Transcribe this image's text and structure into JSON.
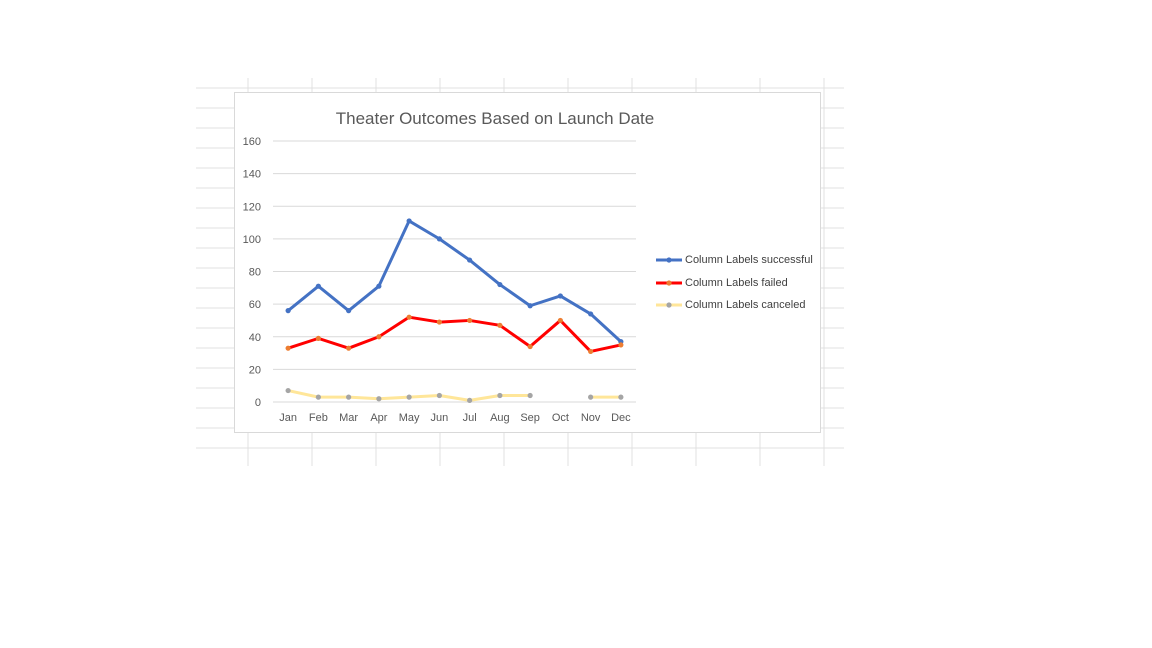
{
  "colors": {
    "successful": "#4472C4",
    "failed": "#FF0000",
    "canceled": "#FFE699",
    "successful_marker": "#4472C4",
    "failed_marker": "#ED7D31",
    "canceled_marker": "#A5A5A5",
    "gridline": "#D9D9D9",
    "sheet_gridline": "#E0E0E0"
  },
  "chart_data": {
    "type": "line",
    "title": "Theater Outcomes Based on Launch Date",
    "xlabel": "",
    "ylabel": "",
    "categories": [
      "Jan",
      "Feb",
      "Mar",
      "Apr",
      "May",
      "Jun",
      "Jul",
      "Aug",
      "Sep",
      "Oct",
      "Nov",
      "Dec"
    ],
    "ylim": [
      0,
      160
    ],
    "yticks": [
      0,
      20,
      40,
      60,
      80,
      100,
      120,
      140,
      160
    ],
    "grid": true,
    "legend_position": "right",
    "series": [
      {
        "key": "successful",
        "name": "Column Labels successful",
        "values": [
          56,
          71,
          56,
          71,
          111,
          100,
          87,
          72,
          59,
          65,
          54,
          37
        ]
      },
      {
        "key": "failed",
        "name": "Column Labels failed",
        "values": [
          33,
          39,
          33,
          40,
          52,
          49,
          50,
          47,
          34,
          50,
          31,
          35
        ]
      },
      {
        "key": "canceled",
        "name": "Column Labels canceled",
        "values": [
          7,
          3,
          3,
          2,
          3,
          4,
          1,
          4,
          4,
          null,
          3,
          3
        ]
      }
    ]
  }
}
